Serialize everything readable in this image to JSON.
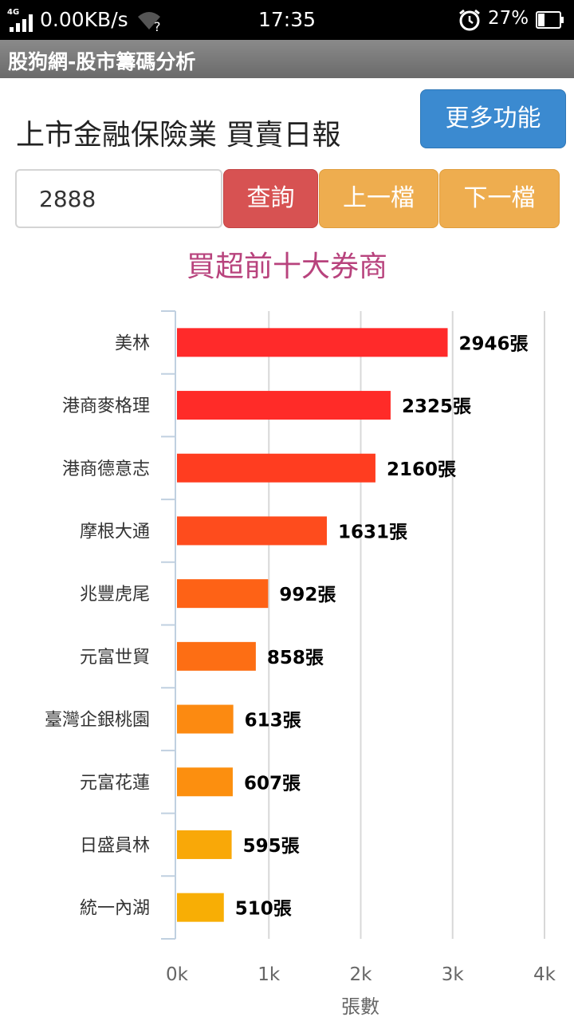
{
  "status_bar": {
    "network": "4G",
    "speed": "0.00KB/s",
    "time": "17:35",
    "battery": "27%"
  },
  "app": {
    "title": "股狗網-股市籌碼分析"
  },
  "page": {
    "title": "上市金融保險業 買賣日報",
    "more_button": "更多功能"
  },
  "search": {
    "value": "2888",
    "query_button": "查詢",
    "prev_button": "上一檔",
    "next_button": "下一檔"
  },
  "colors": {
    "accent_blue": "#3b8ad0",
    "query_red": "#d75252",
    "nav_orange": "#eead4f",
    "chart_title": "#b8437d"
  },
  "chart_data": {
    "type": "bar",
    "orientation": "horizontal",
    "title": "買超前十大券商",
    "xlabel": "張數",
    "ylabel": "",
    "xlim": [
      0,
      4000
    ],
    "grid": true,
    "categories": [
      "美林",
      "港商麥格理",
      "港商德意志",
      "摩根大通",
      "兆豐虎尾",
      "元富世貿",
      "臺灣企銀桃園",
      "元富花蓮",
      "日盛員林",
      "統一內湖"
    ],
    "values": [
      2946,
      2325,
      2160,
      1631,
      992,
      858,
      613,
      607,
      595,
      510
    ],
    "value_labels": [
      "2946張",
      "2325張",
      "2160張",
      "1631張",
      "992張",
      "858張",
      "613張",
      "607張",
      "595張",
      "510張"
    ],
    "tick_labels": [
      "0k",
      "1k",
      "2k",
      "3k",
      "4k"
    ],
    "tick_values": [
      0,
      1000,
      2000,
      3000,
      4000
    ],
    "bar_colors": [
      "#ff2a2a",
      "#ff2b28",
      "#ff3d20",
      "#fe4c1d",
      "#fe6216",
      "#fd6e14",
      "#fc8a11",
      "#fc8f0f",
      "#f9a808",
      "#f8ae05"
    ]
  }
}
